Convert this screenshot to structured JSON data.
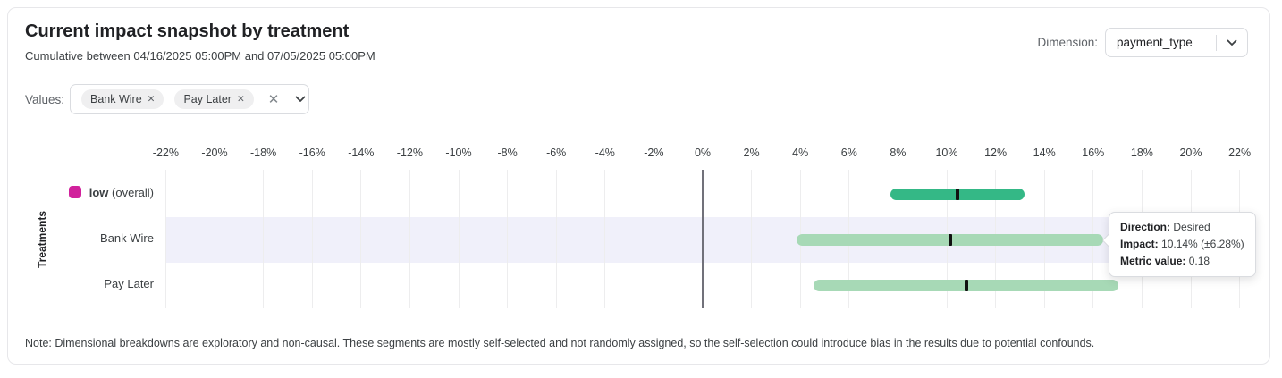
{
  "header": {
    "title": "Current impact snapshot by treatment",
    "subtitle": "Cumulative between 04/16/2025 05:00PM and 07/05/2025 05:00PM",
    "dimension_label": "Dimension:",
    "dimension_value": "payment_type"
  },
  "filters": {
    "values_label": "Values:",
    "chips": [
      {
        "label": "Bank Wire"
      },
      {
        "label": "Pay Later"
      }
    ]
  },
  "icons": {
    "close_glyph": "✕"
  },
  "tooltip": {
    "direction_label": "Direction:",
    "direction_value": "Desired",
    "impact_label": "Impact:",
    "impact_value": "10.14% (±6.28%)",
    "metric_label": "Metric value:",
    "metric_value": "0.18"
  },
  "note": {
    "text": "Note: Dimensional breakdowns are exploratory and non-causal. These segments are mostly self-selected and not randomly assigned, so the self-selection could introduce bias in the results due to potential confounds."
  },
  "chart_data": {
    "type": "bar",
    "subtype": "horizontal_interval",
    "ylabel": "Treatments",
    "xlabel": "",
    "grid": true,
    "zero_line": true,
    "x_axis": {
      "min": -22,
      "max": 22,
      "step": 2,
      "unit": "%",
      "tick_labels": [
        "-22%",
        "-20%",
        "-18%",
        "-16%",
        "-14%",
        "-12%",
        "-10%",
        "-8%",
        "-6%",
        "-4%",
        "-2%",
        "0%",
        "2%",
        "4%",
        "6%",
        "8%",
        "10%",
        "12%",
        "14%",
        "16%",
        "18%",
        "20%",
        "22%"
      ]
    },
    "rows": [
      {
        "label": "low",
        "label_suffix": " (overall)",
        "bold_label": true,
        "swatch_color": "#d1219c",
        "bar_color": "#34b886",
        "center": 10.45,
        "low": 7.7,
        "high": 13.2
      },
      {
        "label": "Bank Wire",
        "bar_color": "#a7d9b6",
        "center": 10.14,
        "low": 3.86,
        "high": 16.42,
        "highlighted": true,
        "has_tooltip": true
      },
      {
        "label": "Pay Later",
        "bar_color": "#a7d9b6",
        "center": 10.8,
        "low": 4.55,
        "high": 17.05
      }
    ],
    "colors": {
      "grid": "#ededee",
      "zero_line": "#71717a",
      "row_highlight": "#f0f0fa",
      "marker": "#111111"
    }
  }
}
